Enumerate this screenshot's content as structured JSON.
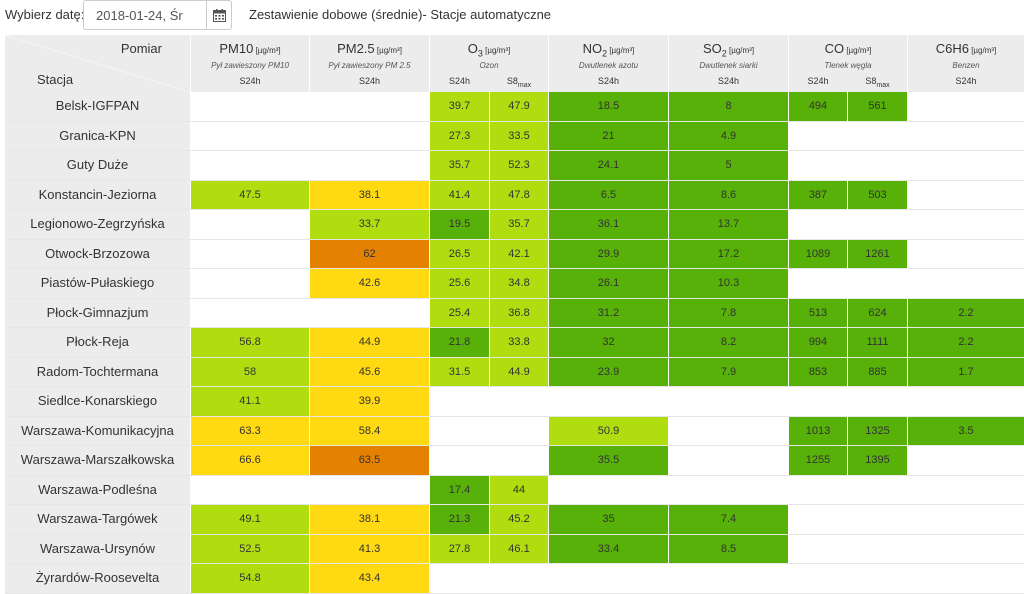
{
  "toolbar": {
    "date_label": "Wybierz datę:",
    "date_value": "2018-01-24, Śr",
    "calendar_icon": "calendar-icon",
    "title": "Zestawienie dobowe (średnie)- Stacje automatyczne"
  },
  "header": {
    "corner_top": "Pomiar",
    "corner_bottom": "Stacja",
    "pollutants": [
      {
        "name": "PM10",
        "sub": "",
        "unit": "[µg/m³]",
        "desc": "Pył zawieszony PM10",
        "measures": [
          "S24h"
        ]
      },
      {
        "name": "PM2.5",
        "sub": "",
        "unit": "[µg/m³]",
        "desc": "Pył zawieszony PM 2.5",
        "measures": [
          "S24h"
        ]
      },
      {
        "name": "O",
        "sub": "3",
        "unit": "[µg/m³]",
        "desc": "Ozon",
        "measures": [
          "S24h",
          "S8max"
        ]
      },
      {
        "name": "NO",
        "sub": "2",
        "unit": "[µg/m³]",
        "desc": "Dwutlenek azotu",
        "measures": [
          "S24h"
        ]
      },
      {
        "name": "SO",
        "sub": "2",
        "unit": "[µg/m³]",
        "desc": "Dwutlenek siarki",
        "measures": [
          "S24h"
        ]
      },
      {
        "name": "CO",
        "sub": "",
        "unit": "[µg/m³]",
        "desc": "Tlenek węgla",
        "measures": [
          "S24h",
          "S8max"
        ]
      },
      {
        "name": "C6H6",
        "sub": "",
        "unit": "[µg/m³]",
        "desc": "Benzen",
        "measures": [
          "S24h"
        ]
      }
    ]
  },
  "legend_colors": {
    "very_good": "#57b108",
    "good": "#b0dd10",
    "moderate": "#ffd911",
    "sufficient": "#e58100",
    "empty": "#ffffff",
    "header_bg": "#ececec"
  },
  "columns": [
    "PM10 S24h",
    "PM2.5 S24h",
    "O3 S24h",
    "O3 S8max",
    "NO2 S24h",
    "SO2 S24h",
    "CO S24h",
    "CO S8max",
    "C6H6 S24h"
  ],
  "rows": [
    {
      "station": "Belsk-IGFPAN",
      "cells": [
        [
          "",
          ""
        ],
        [
          "",
          ""
        ],
        [
          "39.7",
          "q2"
        ],
        [
          "47.9",
          "q2"
        ],
        [
          "18.5",
          "q1"
        ],
        [
          "8",
          "q1"
        ],
        [
          "494",
          "q1"
        ],
        [
          "561",
          "q1"
        ],
        [
          "",
          ""
        ]
      ]
    },
    {
      "station": "Granica-KPN",
      "cells": [
        [
          "",
          ""
        ],
        [
          "",
          ""
        ],
        [
          "27.3",
          "q2"
        ],
        [
          "33.5",
          "q2"
        ],
        [
          "21",
          "q1"
        ],
        [
          "4.9",
          "q1"
        ],
        [
          "",
          ""
        ],
        [
          "",
          ""
        ],
        [
          "",
          ""
        ]
      ]
    },
    {
      "station": "Guty Duże",
      "cells": [
        [
          "",
          ""
        ],
        [
          "",
          ""
        ],
        [
          "35.7",
          "q2"
        ],
        [
          "52.3",
          "q2"
        ],
        [
          "24.1",
          "q1"
        ],
        [
          "5",
          "q1"
        ],
        [
          "",
          ""
        ],
        [
          "",
          ""
        ],
        [
          "",
          ""
        ]
      ]
    },
    {
      "station": "Konstancin-Jeziorna",
      "cells": [
        [
          "47.5",
          "q2"
        ],
        [
          "38.1",
          "q3"
        ],
        [
          "41.4",
          "q2"
        ],
        [
          "47.8",
          "q2"
        ],
        [
          "6.5",
          "q1"
        ],
        [
          "8.6",
          "q1"
        ],
        [
          "387",
          "q1"
        ],
        [
          "503",
          "q1"
        ],
        [
          "",
          ""
        ]
      ]
    },
    {
      "station": "Legionowo-Zegrzyńska",
      "cells": [
        [
          "",
          ""
        ],
        [
          "33.7",
          "q2"
        ],
        [
          "19.5",
          "q1"
        ],
        [
          "35.7",
          "q2"
        ],
        [
          "36.1",
          "q1"
        ],
        [
          "13.7",
          "q1"
        ],
        [
          "",
          ""
        ],
        [
          "",
          ""
        ],
        [
          "",
          ""
        ]
      ]
    },
    {
      "station": "Otwock-Brzozowa",
      "cells": [
        [
          "",
          ""
        ],
        [
          "62",
          "q4"
        ],
        [
          "26.5",
          "q2"
        ],
        [
          "42.1",
          "q2"
        ],
        [
          "29.9",
          "q1"
        ],
        [
          "17.2",
          "q1"
        ],
        [
          "1089",
          "q1"
        ],
        [
          "1261",
          "q1"
        ],
        [
          "",
          ""
        ]
      ]
    },
    {
      "station": "Piastów-Pułaskiego",
      "cells": [
        [
          "",
          ""
        ],
        [
          "42.6",
          "q3"
        ],
        [
          "25.6",
          "q2"
        ],
        [
          "34.8",
          "q2"
        ],
        [
          "26.1",
          "q1"
        ],
        [
          "10.3",
          "q1"
        ],
        [
          "",
          ""
        ],
        [
          "",
          ""
        ],
        [
          "",
          ""
        ]
      ]
    },
    {
      "station": "Płock-Gimnazjum",
      "cells": [
        [
          "",
          ""
        ],
        [
          "",
          ""
        ],
        [
          "25.4",
          "q2"
        ],
        [
          "36.8",
          "q2"
        ],
        [
          "31.2",
          "q1"
        ],
        [
          "7.8",
          "q1"
        ],
        [
          "513",
          "q1"
        ],
        [
          "624",
          "q1"
        ],
        [
          "2.2",
          "q1"
        ]
      ]
    },
    {
      "station": "Płock-Reja",
      "cells": [
        [
          "56.8",
          "q2"
        ],
        [
          "44.9",
          "q3"
        ],
        [
          "21.8",
          "q1"
        ],
        [
          "33.8",
          "q2"
        ],
        [
          "32",
          "q1"
        ],
        [
          "8.2",
          "q1"
        ],
        [
          "994",
          "q1"
        ],
        [
          "1111",
          "q1"
        ],
        [
          "2.2",
          "q1"
        ]
      ]
    },
    {
      "station": "Radom-Tochtermana",
      "cells": [
        [
          "58",
          "q2"
        ],
        [
          "45.6",
          "q3"
        ],
        [
          "31.5",
          "q2"
        ],
        [
          "44.9",
          "q2"
        ],
        [
          "23.9",
          "q1"
        ],
        [
          "7.9",
          "q1"
        ],
        [
          "853",
          "q1"
        ],
        [
          "885",
          "q1"
        ],
        [
          "1.7",
          "q1"
        ]
      ]
    },
    {
      "station": "Siedlce-Konarskiego",
      "cells": [
        [
          "41.1",
          "q2"
        ],
        [
          "39.9",
          "q3"
        ],
        [
          "",
          ""
        ],
        [
          "",
          ""
        ],
        [
          "",
          ""
        ],
        [
          "",
          ""
        ],
        [
          "",
          ""
        ],
        [
          "",
          ""
        ],
        [
          "",
          ""
        ]
      ]
    },
    {
      "station": "Warszawa-Komunikacyjna",
      "cells": [
        [
          "63.3",
          "q3"
        ],
        [
          "58.4",
          "q3"
        ],
        [
          "",
          ""
        ],
        [
          "",
          ""
        ],
        [
          "50.9",
          "q2"
        ],
        [
          "",
          ""
        ],
        [
          "1013",
          "q1"
        ],
        [
          "1325",
          "q1"
        ],
        [
          "3.5",
          "q1"
        ]
      ]
    },
    {
      "station": "Warszawa-Marszałkowska",
      "cells": [
        [
          "66.6",
          "q3"
        ],
        [
          "63.5",
          "q4"
        ],
        [
          "",
          ""
        ],
        [
          "",
          ""
        ],
        [
          "35.5",
          "q1"
        ],
        [
          "",
          ""
        ],
        [
          "1255",
          "q1"
        ],
        [
          "1395",
          "q1"
        ],
        [
          "",
          ""
        ]
      ]
    },
    {
      "station": "Warszawa-Podleśna",
      "cells": [
        [
          "",
          ""
        ],
        [
          "",
          ""
        ],
        [
          "17.4",
          "q1"
        ],
        [
          "44",
          "q2"
        ],
        [
          "",
          ""
        ],
        [
          "",
          ""
        ],
        [
          "",
          ""
        ],
        [
          "",
          ""
        ],
        [
          "",
          ""
        ]
      ]
    },
    {
      "station": "Warszawa-Targówek",
      "cells": [
        [
          "49.1",
          "q2"
        ],
        [
          "38.1",
          "q3"
        ],
        [
          "21.3",
          "q1"
        ],
        [
          "45.2",
          "q2"
        ],
        [
          "35",
          "q1"
        ],
        [
          "7.4",
          "q1"
        ],
        [
          "",
          ""
        ],
        [
          "",
          ""
        ],
        [
          "",
          ""
        ]
      ]
    },
    {
      "station": "Warszawa-Ursynów",
      "cells": [
        [
          "52.5",
          "q2"
        ],
        [
          "41.3",
          "q3"
        ],
        [
          "27.8",
          "q2"
        ],
        [
          "46.1",
          "q2"
        ],
        [
          "33.4",
          "q1"
        ],
        [
          "8.5",
          "q1"
        ],
        [
          "",
          ""
        ],
        [
          "",
          ""
        ],
        [
          "",
          ""
        ]
      ]
    },
    {
      "station": "Żyrardów-Roosevelta",
      "cells": [
        [
          "54.8",
          "q2"
        ],
        [
          "43.4",
          "q3"
        ],
        [
          "",
          ""
        ],
        [
          "",
          ""
        ],
        [
          "",
          ""
        ],
        [
          "",
          ""
        ],
        [
          "",
          ""
        ],
        [
          "",
          ""
        ],
        [
          "",
          ""
        ]
      ]
    }
  ]
}
